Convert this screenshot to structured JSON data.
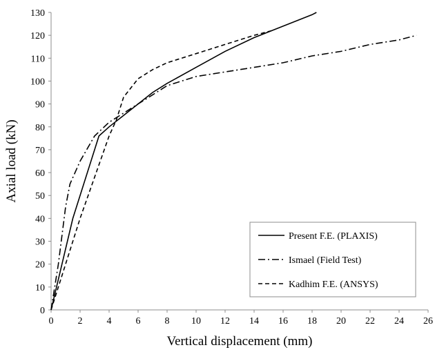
{
  "chart_data": {
    "type": "line",
    "title": "",
    "xlabel": "Vertical displacement (mm)",
    "ylabel": "Axial load (kN)",
    "xlim": [
      0,
      26
    ],
    "ylim": [
      0,
      130
    ],
    "xticks": [
      0,
      2,
      4,
      6,
      8,
      10,
      12,
      14,
      16,
      18,
      20,
      22,
      24,
      26
    ],
    "yticks": [
      0,
      10,
      20,
      30,
      40,
      50,
      60,
      70,
      80,
      90,
      100,
      110,
      120,
      130
    ],
    "grid": false,
    "legend_position": "bottom-right",
    "series": [
      {
        "name": "Present F.E. (PLAXIS)",
        "style": "solid",
        "color": "#000000",
        "x": [
          0,
          1.5,
          3.3,
          4,
          5,
          6,
          7,
          8,
          10,
          12,
          14,
          16,
          18,
          18.3
        ],
        "y": [
          0,
          40,
          76,
          80,
          85,
          90,
          95,
          99,
          106,
          113,
          119,
          124,
          129,
          130
        ]
      },
      {
        "name": "Ismael (Field Test)",
        "style": "dashdot",
        "color": "#000000",
        "x": [
          0,
          0.5,
          1,
          1.3,
          2,
          3,
          4,
          5,
          6,
          7,
          8,
          10,
          12,
          14,
          16,
          18,
          20,
          22,
          24,
          25.2
        ],
        "y": [
          0,
          20,
          45,
          55,
          65,
          76,
          82,
          86,
          90,
          94,
          98,
          102,
          104,
          106,
          108,
          111,
          113,
          116,
          118,
          120
        ]
      },
      {
        "name": "Kadhim F.E. (ANSYS)",
        "style": "dashed",
        "color": "#000000",
        "x": [
          0,
          1,
          2,
          3,
          4,
          4.5,
          5,
          6,
          7,
          8,
          10,
          12,
          14,
          15.2
        ],
        "y": [
          0,
          20,
          40,
          58,
          76,
          83,
          93,
          101,
          105,
          108,
          112,
          116,
          120,
          122
        ]
      }
    ]
  }
}
